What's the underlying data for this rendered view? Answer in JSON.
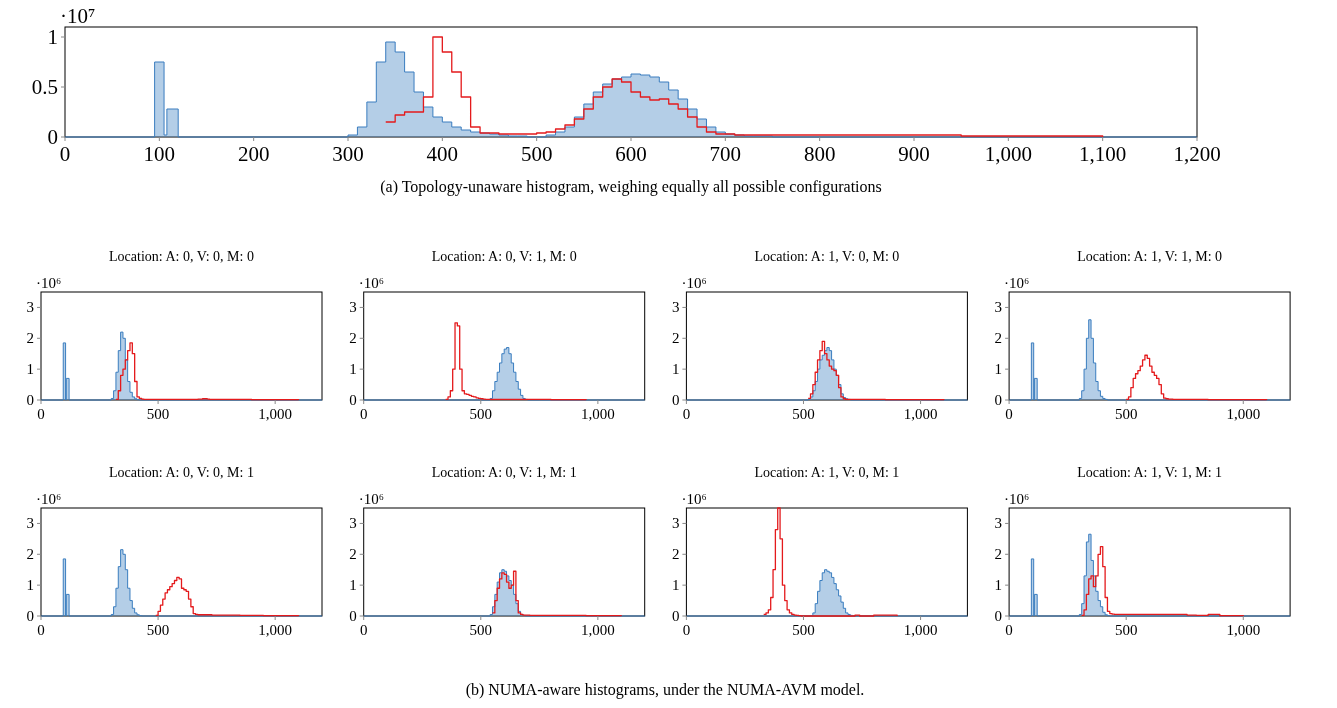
{
  "chart_data": [
    {
      "type": "histogram",
      "annotations": [
        "·10⁷",
        "(a) Topology-unaware histogram, weighing equally all possible configurations"
      ],
      "xlim": [
        0,
        1200
      ],
      "ylim": [
        0,
        1.1
      ],
      "xticks": [
        0,
        100,
        200,
        300,
        400,
        500,
        600,
        700,
        800,
        900,
        {
          "value": 1000,
          "label": "1,000"
        },
        {
          "value": 1100,
          "label": "1,100"
        },
        {
          "value": 1200,
          "label": "1,200"
        }
      ],
      "yticks": [
        0,
        0.5,
        1
      ],
      "bins": [
        0,
        95,
        105,
        108,
        120,
        280,
        290,
        300,
        310,
        320,
        330,
        340,
        350,
        360,
        370,
        380,
        390,
        400,
        410,
        420,
        430,
        440,
        450,
        460,
        470,
        480,
        490,
        500,
        510,
        520,
        530,
        540,
        550,
        560,
        570,
        580,
        590,
        600,
        610,
        620,
        630,
        640,
        650,
        660,
        670,
        680,
        690,
        700,
        710,
        720,
        730,
        740,
        750,
        760,
        800,
        850,
        900,
        950,
        1000,
        1100,
        1200
      ],
      "series": [
        {
          "color": "#3a7dbf",
          "values": [
            0,
            0.75,
            0.02,
            0.28,
            0,
            0,
            0,
            0.02,
            0.1,
            0.35,
            0.75,
            0.95,
            0.85,
            0.65,
            0.45,
            0.3,
            0.2,
            0.15,
            0.1,
            0.07,
            0.05,
            0.04,
            0.03,
            0.02,
            0.01,
            0.01,
            0,
            0,
            0.02,
            0.05,
            0.1,
            0.2,
            0.33,
            0.45,
            0.53,
            0.58,
            0.6,
            0.63,
            0.62,
            0.6,
            0.55,
            0.47,
            0.38,
            0.28,
            0.18,
            0.1,
            0.05,
            0.03,
            0.02,
            0.01,
            0.01,
            0.01,
            0,
            0,
            0,
            0,
            0,
            0,
            0,
            0
          ]
        },
        {
          "type": "step",
          "color": "#e41a1c",
          "x": [
            340,
            350,
            360,
            380,
            390,
            400,
            410,
            420,
            430,
            440,
            460,
            500,
            510,
            520,
            530,
            540,
            550,
            560,
            570,
            580,
            590,
            600,
            610,
            620,
            630,
            640,
            650,
            660,
            670,
            680,
            690,
            710,
            950,
            1100
          ],
          "values": [
            0.15,
            0.22,
            0.25,
            0.4,
            1.0,
            0.85,
            0.65,
            0.4,
            0.1,
            0.04,
            0.03,
            0.04,
            0.05,
            0.08,
            0.12,
            0.18,
            0.28,
            0.4,
            0.5,
            0.58,
            0.55,
            0.45,
            0.4,
            0.37,
            0.38,
            0.33,
            0.28,
            0.2,
            0.1,
            0.05,
            0.03,
            0.02,
            0.01,
            0
          ]
        }
      ]
    },
    {
      "type": "histogram",
      "title": "Location: A: 0, V: 0, M: 0",
      "annotations": [
        "·10⁶"
      ],
      "xlim": [
        0,
        1200
      ],
      "ylim": [
        0,
        3.5
      ],
      "xticks": [
        0,
        500,
        {
          "value": 1000,
          "label": "1,000"
        }
      ],
      "yticks": [
        0,
        1,
        2,
        3
      ],
      "bins": [
        0,
        95,
        105,
        108,
        120,
        280,
        290,
        300,
        310,
        320,
        330,
        340,
        350,
        360,
        370,
        380,
        390,
        400,
        410,
        420,
        430,
        440,
        450,
        460,
        470,
        480,
        490,
        500,
        510,
        520,
        530,
        540,
        550,
        560,
        570,
        580,
        590,
        600,
        610,
        620,
        630,
        640,
        650,
        660,
        670,
        680,
        690,
        700,
        710,
        720,
        730,
        740,
        750,
        760,
        800,
        850,
        900,
        950,
        1000,
        1100,
        1200
      ],
      "series": [
        {
          "color": "#3a7dbf",
          "values": [
            0,
            1.85,
            0,
            0.7,
            0,
            0,
            0,
            0.05,
            0.3,
            0.9,
            1.6,
            2.2,
            2.0,
            1.3,
            0.6,
            0.25,
            0.1,
            0.04,
            0.01,
            0,
            0,
            0,
            0,
            0,
            0,
            0,
            0,
            0,
            0,
            0,
            0,
            0,
            0,
            0,
            0,
            0,
            0,
            0,
            0,
            0,
            0,
            0,
            0,
            0,
            0,
            0,
            0,
            0,
            0,
            0,
            0,
            0,
            0,
            0,
            0,
            0,
            0,
            0,
            0,
            0
          ]
        },
        {
          "type": "step",
          "color": "#e41a1c",
          "x": [
            320,
            330,
            340,
            350,
            360,
            370,
            380,
            390,
            400,
            410,
            420,
            430,
            440,
            670,
            690,
            710,
            720,
            900,
            1100
          ],
          "values": [
            0.02,
            0.3,
            0.8,
            1.0,
            1.3,
            1.6,
            1.85,
            1.5,
            0.6,
            0.1,
            0.05,
            0.03,
            0.02,
            0.03,
            0.04,
            0.03,
            0.02,
            0.01,
            0
          ]
        }
      ]
    },
    {
      "type": "histogram",
      "title": "Location: A: 0, V: 1, M: 0",
      "annotations": [
        "·10⁶"
      ],
      "xlim": [
        0,
        1200
      ],
      "ylim": [
        0,
        3.5
      ],
      "xticks": [
        0,
        500,
        {
          "value": 1000,
          "label": "1,000"
        }
      ],
      "yticks": [
        0,
        1,
        2,
        3
      ],
      "bins": [
        0,
        95,
        105,
        108,
        120,
        280,
        290,
        300,
        310,
        320,
        330,
        340,
        350,
        360,
        370,
        380,
        390,
        400,
        410,
        420,
        430,
        440,
        450,
        460,
        470,
        480,
        490,
        500,
        510,
        520,
        530,
        540,
        550,
        560,
        570,
        580,
        590,
        600,
        610,
        620,
        630,
        640,
        650,
        660,
        670,
        680,
        690,
        700,
        710,
        720,
        730,
        740,
        750,
        760,
        800,
        850,
        900,
        950,
        1000,
        1100,
        1200
      ],
      "series": [
        {
          "color": "#3a7dbf",
          "values": [
            0,
            0,
            0,
            0,
            0,
            0,
            0,
            0,
            0,
            0,
            0,
            0,
            0,
            0,
            0,
            0,
            0,
            0,
            0,
            0,
            0,
            0,
            0,
            0,
            0,
            0,
            0,
            0,
            0,
            0,
            0,
            0.05,
            0.3,
            0.6,
            0.9,
            1.2,
            1.5,
            1.65,
            1.7,
            1.5,
            1.2,
            0.9,
            0.6,
            0.35,
            0.15,
            0.05,
            0.02,
            0,
            0,
            0,
            0,
            0,
            0,
            0,
            0,
            0,
            0,
            0,
            0,
            0
          ]
        },
        {
          "type": "step",
          "color": "#e41a1c",
          "x": [
            350,
            360,
            370,
            380,
            390,
            400,
            410,
            420,
            430,
            440,
            450,
            460,
            470,
            480,
            490,
            500,
            510,
            520,
            800,
            950
          ],
          "values": [
            0.02,
            0.1,
            0.3,
            1.0,
            2.5,
            2.4,
            1.0,
            0.3,
            0.2,
            0.18,
            0.15,
            0.12,
            0.1,
            0.07,
            0.05,
            0.04,
            0.03,
            0.02,
            0.01,
            0
          ]
        }
      ]
    },
    {
      "type": "histogram",
      "title": "Location: A: 1, V: 0, M: 0",
      "annotations": [
        "·10⁶"
      ],
      "xlim": [
        0,
        1200
      ],
      "ylim": [
        0,
        3.5
      ],
      "xticks": [
        0,
        500,
        {
          "value": 1000,
          "label": "1,000"
        }
      ],
      "yticks": [
        0,
        1,
        2,
        3
      ],
      "bins": [
        0,
        95,
        105,
        108,
        120,
        280,
        290,
        300,
        310,
        320,
        330,
        340,
        350,
        360,
        370,
        380,
        390,
        400,
        410,
        420,
        430,
        440,
        450,
        460,
        470,
        480,
        490,
        500,
        510,
        520,
        530,
        540,
        550,
        560,
        570,
        580,
        590,
        600,
        610,
        620,
        630,
        640,
        650,
        660,
        670,
        680,
        690,
        700,
        710,
        720,
        730,
        740,
        750,
        760,
        800,
        850,
        900,
        950,
        1000,
        1100,
        1200
      ],
      "series": [
        {
          "color": "#3a7dbf",
          "values": [
            0,
            0,
            0,
            0,
            0,
            0,
            0,
            0,
            0,
            0,
            0,
            0,
            0,
            0,
            0,
            0,
            0,
            0,
            0,
            0,
            0,
            0,
            0,
            0,
            0,
            0,
            0,
            0,
            0,
            0.02,
            0.1,
            0.3,
            0.6,
            1.0,
            1.3,
            1.45,
            1.6,
            1.7,
            1.6,
            1.3,
            1.0,
            0.8,
            0.5,
            0.2,
            0.08,
            0.04,
            0.02,
            0,
            0,
            0,
            0,
            0,
            0,
            0,
            0,
            0,
            0,
            0,
            0,
            0
          ]
        },
        {
          "type": "step",
          "color": "#e41a1c",
          "x": [
            520,
            530,
            540,
            550,
            560,
            570,
            580,
            590,
            600,
            610,
            620,
            630,
            640,
            650,
            660,
            670,
            680,
            850,
            1100
          ],
          "values": [
            0.05,
            0.2,
            0.5,
            0.9,
            1.3,
            1.6,
            1.9,
            1.5,
            1.3,
            1.1,
            1.0,
            0.95,
            0.8,
            0.4,
            0.1,
            0.04,
            0.02,
            0.01,
            0
          ]
        }
      ]
    },
    {
      "type": "histogram",
      "title": "Location: A: 1, V: 1, M: 0",
      "annotations": [
        "·10⁶"
      ],
      "xlim": [
        0,
        1200
      ],
      "ylim": [
        0,
        3.5
      ],
      "xticks": [
        0,
        500,
        {
          "value": 1000,
          "label": "1,000"
        }
      ],
      "yticks": [
        0,
        1,
        2,
        3
      ],
      "bins": [
        0,
        95,
        105,
        108,
        120,
        280,
        290,
        300,
        310,
        320,
        330,
        340,
        350,
        360,
        370,
        380,
        390,
        400,
        410,
        420,
        430,
        440,
        450,
        460,
        470,
        480,
        490,
        500,
        510,
        520,
        530,
        540,
        550,
        560,
        570,
        580,
        590,
        600,
        610,
        620,
        630,
        640,
        650,
        660,
        670,
        680,
        690,
        700,
        710,
        720,
        730,
        740,
        750,
        760,
        800,
        850,
        900,
        950,
        1000,
        1100,
        1200
      ],
      "series": [
        {
          "color": "#3a7dbf",
          "values": [
            0,
            1.85,
            0,
            0.7,
            0,
            0,
            0,
            0.05,
            0.3,
            1.0,
            2.0,
            2.6,
            2.0,
            1.2,
            0.6,
            0.3,
            0.12,
            0.05,
            0.02,
            0,
            0,
            0,
            0,
            0,
            0,
            0,
            0,
            0,
            0,
            0,
            0,
            0,
            0,
            0,
            0,
            0,
            0,
            0,
            0,
            0,
            0,
            0,
            0,
            0,
            0,
            0,
            0,
            0,
            0,
            0,
            0,
            0,
            0,
            0,
            0,
            0,
            0,
            0,
            0,
            0
          ]
        },
        {
          "type": "step",
          "color": "#e41a1c",
          "x": [
            500,
            510,
            520,
            530,
            540,
            550,
            560,
            570,
            580,
            590,
            600,
            610,
            620,
            630,
            640,
            650,
            660,
            670,
            680,
            700,
            850,
            1100
          ],
          "values": [
            0.02,
            0.1,
            0.4,
            0.7,
            0.85,
            0.95,
            1.1,
            1.3,
            1.45,
            1.35,
            1.1,
            0.9,
            0.8,
            0.7,
            0.5,
            0.2,
            0.06,
            0.04,
            0.03,
            0.02,
            0.01,
            0
          ]
        }
      ]
    },
    {
      "type": "histogram",
      "title": "Location: A: 0, V: 0, M: 1",
      "annotations": [
        "·10⁶"
      ],
      "xlim": [
        0,
        1200
      ],
      "ylim": [
        0,
        3.5
      ],
      "xticks": [
        0,
        500,
        {
          "value": 1000,
          "label": "1,000"
        }
      ],
      "yticks": [
        0,
        1,
        2,
        3
      ],
      "bins": [
        0,
        95,
        105,
        108,
        120,
        280,
        290,
        300,
        310,
        320,
        330,
        340,
        350,
        360,
        370,
        380,
        390,
        400,
        410,
        420,
        430,
        440,
        450,
        460,
        470,
        480,
        490,
        500,
        510,
        520,
        530,
        540,
        550,
        560,
        570,
        580,
        590,
        600,
        610,
        620,
        630,
        640,
        650,
        660,
        670,
        680,
        690,
        700,
        710,
        720,
        730,
        740,
        750,
        760,
        800,
        850,
        900,
        950,
        1000,
        1100,
        1200
      ],
      "series": [
        {
          "color": "#3a7dbf",
          "values": [
            0,
            1.85,
            0,
            0.7,
            0,
            0,
            0,
            0.05,
            0.3,
            0.9,
            1.6,
            2.15,
            2.0,
            1.5,
            0.9,
            0.5,
            0.25,
            0.1,
            0.04,
            0.01,
            0,
            0,
            0,
            0,
            0,
            0,
            0,
            0,
            0,
            0,
            0,
            0,
            0,
            0,
            0,
            0,
            0,
            0,
            0,
            0,
            0,
            0,
            0,
            0,
            0,
            0,
            0,
            0,
            0,
            0,
            0,
            0,
            0,
            0,
            0,
            0,
            0,
            0,
            0,
            0
          ]
        },
        {
          "type": "step",
          "color": "#e41a1c",
          "x": [
            490,
            500,
            510,
            520,
            530,
            540,
            550,
            560,
            570,
            580,
            590,
            600,
            610,
            620,
            630,
            640,
            650,
            660,
            670,
            730,
            850,
            950,
            1100
          ],
          "values": [
            0.02,
            0.15,
            0.35,
            0.55,
            0.75,
            0.85,
            0.95,
            1.05,
            1.15,
            1.25,
            1.2,
            0.9,
            0.85,
            0.8,
            0.55,
            0.3,
            0.08,
            0.05,
            0.04,
            0.03,
            0.02,
            0.01,
            0
          ]
        }
      ]
    },
    {
      "type": "histogram",
      "title": "Location: A: 0, V: 1, M: 1",
      "annotations": [
        "·10⁶"
      ],
      "xlim": [
        0,
        1200
      ],
      "ylim": [
        0,
        3.5
      ],
      "xticks": [
        0,
        500,
        {
          "value": 1000,
          "label": "1,000"
        }
      ],
      "yticks": [
        0,
        1,
        2,
        3
      ],
      "bins": [
        0,
        95,
        105,
        108,
        120,
        280,
        290,
        300,
        310,
        320,
        330,
        340,
        350,
        360,
        370,
        380,
        390,
        400,
        410,
        420,
        430,
        440,
        450,
        460,
        470,
        480,
        490,
        500,
        510,
        520,
        530,
        540,
        550,
        560,
        570,
        580,
        590,
        600,
        610,
        620,
        630,
        640,
        650,
        660,
        670,
        680,
        690,
        700,
        710,
        720,
        730,
        740,
        750,
        760,
        800,
        850,
        900,
        950,
        1000,
        1100,
        1200
      ],
      "series": [
        {
          "color": "#3a7dbf",
          "values": [
            0,
            0,
            0,
            0,
            0,
            0,
            0,
            0,
            0,
            0,
            0,
            0,
            0,
            0,
            0,
            0,
            0,
            0,
            0,
            0,
            0,
            0,
            0,
            0,
            0,
            0,
            0,
            0,
            0,
            0,
            0,
            0.05,
            0.3,
            0.7,
            1.1,
            1.4,
            1.5,
            1.45,
            1.3,
            1.15,
            1.0,
            0.7,
            0.4,
            0.15,
            0.05,
            0.02,
            0,
            0,
            0,
            0,
            0,
            0,
            0,
            0,
            0,
            0,
            0,
            0,
            0,
            0
          ]
        },
        {
          "type": "step",
          "color": "#e41a1c",
          "x": [
            550,
            560,
            570,
            580,
            590,
            600,
            610,
            620,
            630,
            640,
            650,
            660,
            670,
            680,
            710,
            950,
            1100
          ],
          "values": [
            0.1,
            0.5,
            0.9,
            1.2,
            1.4,
            1.35,
            1.1,
            0.9,
            1.0,
            1.45,
            0.5,
            0.1,
            0.05,
            0.03,
            0.02,
            0.01,
            0
          ]
        }
      ]
    },
    {
      "type": "histogram",
      "title": "Location: A: 1, V: 0, M: 1",
      "annotations": [
        "·10⁶"
      ],
      "xlim": [
        0,
        1200
      ],
      "ylim": [
        0,
        3.5
      ],
      "xticks": [
        0,
        500,
        {
          "value": 1000,
          "label": "1,000"
        }
      ],
      "yticks": [
        0,
        1,
        2,
        3
      ],
      "bins": [
        0,
        95,
        105,
        108,
        120,
        280,
        290,
        300,
        310,
        320,
        330,
        340,
        350,
        360,
        370,
        380,
        390,
        400,
        410,
        420,
        430,
        440,
        450,
        460,
        470,
        480,
        490,
        500,
        510,
        520,
        530,
        540,
        550,
        560,
        570,
        580,
        590,
        600,
        610,
        620,
        630,
        640,
        650,
        660,
        670,
        680,
        690,
        700,
        710,
        720,
        730,
        740,
        750,
        760,
        800,
        850,
        900,
        950,
        1000,
        1100,
        1200
      ],
      "series": [
        {
          "color": "#3a7dbf",
          "values": [
            0,
            0,
            0,
            0,
            0,
            0,
            0,
            0,
            0,
            0,
            0,
            0,
            0,
            0,
            0,
            0,
            0,
            0,
            0,
            0,
            0,
            0,
            0,
            0,
            0,
            0,
            0,
            0,
            0,
            0,
            0,
            0.1,
            0.4,
            0.8,
            1.15,
            1.4,
            1.5,
            1.45,
            1.4,
            1.25,
            1.05,
            0.85,
            0.65,
            0.45,
            0.25,
            0.1,
            0.05,
            0.02,
            0,
            0,
            0,
            0,
            0,
            0,
            0,
            0,
            0,
            0,
            0,
            0
          ]
        },
        {
          "type": "step",
          "color": "#e41a1c",
          "x": [
            330,
            340,
            350,
            360,
            370,
            380,
            390,
            400,
            410,
            420,
            430,
            440,
            450,
            460,
            470,
            480,
            490,
            720,
            740,
            800,
            900
          ],
          "values": [
            0.05,
            0.1,
            0.2,
            0.6,
            1.5,
            2.8,
            3.5,
            2.5,
            1.0,
            0.5,
            0.2,
            0.1,
            0.05,
            0.03,
            0.02,
            0.01,
            0,
            0.03,
            0,
            0.03,
            0
          ]
        }
      ]
    },
    {
      "type": "histogram",
      "title": "Location: A: 1, V: 1, M: 1",
      "annotations": [
        "·10⁶",
        "(b) NUMA-aware histograms, under the NUMA-AVM model."
      ],
      "xlim": [
        0,
        1200
      ],
      "ylim": [
        0,
        3.5
      ],
      "xticks": [
        0,
        500,
        {
          "value": 1000,
          "label": "1,000"
        }
      ],
      "yticks": [
        0,
        1,
        2,
        3
      ],
      "bins": [
        0,
        95,
        105,
        108,
        120,
        280,
        290,
        300,
        310,
        320,
        330,
        340,
        350,
        360,
        370,
        380,
        390,
        400,
        410,
        420,
        430,
        440,
        450,
        460,
        470,
        480,
        490,
        500,
        510,
        520,
        530,
        540,
        550,
        560,
        570,
        580,
        590,
        600,
        610,
        620,
        630,
        640,
        650,
        660,
        670,
        680,
        690,
        700,
        710,
        720,
        730,
        740,
        750,
        760,
        800,
        850,
        900,
        950,
        1000,
        1100,
        1200
      ],
      "series": [
        {
          "color": "#3a7dbf",
          "values": [
            0,
            1.85,
            0,
            0.7,
            0,
            0,
            0,
            0.05,
            0.4,
            1.3,
            2.4,
            2.65,
            1.8,
            1.3,
            0.8,
            0.5,
            0.3,
            0.12,
            0.04,
            0.01,
            0,
            0,
            0,
            0,
            0,
            0,
            0,
            0,
            0,
            0,
            0,
            0,
            0,
            0,
            0,
            0,
            0,
            0,
            0,
            0,
            0,
            0,
            0,
            0,
            0,
            0,
            0,
            0,
            0,
            0,
            0,
            0,
            0,
            0,
            0,
            0,
            0,
            0,
            0,
            0
          ]
        },
        {
          "type": "step",
          "color": "#e41a1c",
          "x": [
            310,
            320,
            330,
            340,
            350,
            360,
            370,
            380,
            390,
            400,
            410,
            420,
            430,
            440,
            450,
            760,
            800,
            850,
            900,
            1000
          ],
          "values": [
            0.02,
            0.2,
            0.7,
            1.2,
            1.3,
            0.95,
            1.3,
            2.0,
            2.25,
            1.6,
            0.6,
            0.15,
            0.08,
            0.06,
            0.05,
            0.03,
            0.02,
            0.05,
            0.01,
            0
          ]
        }
      ]
    }
  ]
}
